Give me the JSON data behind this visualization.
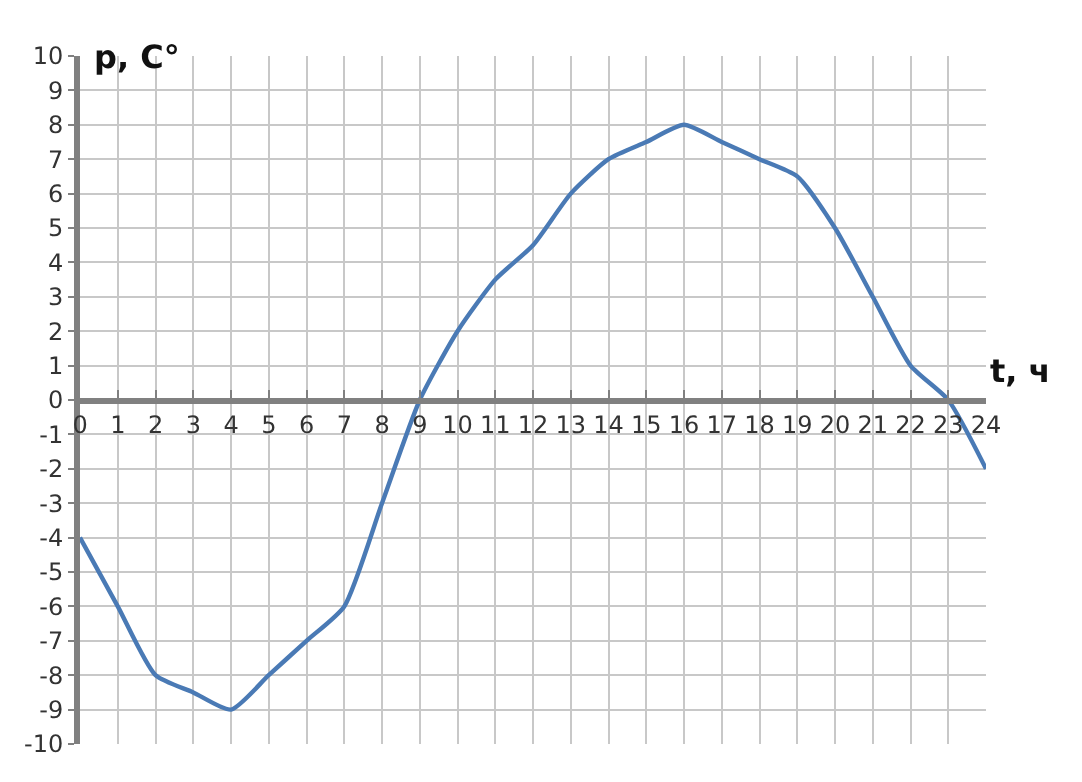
{
  "chart_data": {
    "type": "line",
    "xlabel": "t, ч",
    "ylabel": "p, C°",
    "x": [
      0,
      1,
      2,
      3,
      4,
      5,
      6,
      7,
      8,
      9,
      10,
      11,
      12,
      13,
      14,
      15,
      16,
      17,
      18,
      19,
      20,
      21,
      22,
      23,
      24
    ],
    "series": [
      {
        "color": "#4a7ab5",
        "values": [
          -4,
          -6,
          -8,
          -8.5,
          -9,
          -8,
          -7,
          -6,
          -3,
          0,
          2,
          3.5,
          4.5,
          6,
          7,
          7.5,
          8,
          7.5,
          7,
          6.5,
          5,
          3,
          1,
          0,
          -2
        ]
      }
    ],
    "xlim": [
      0,
      24
    ],
    "ylim": [
      -10,
      10
    ],
    "xticks": [
      0,
      1,
      2,
      3,
      4,
      5,
      6,
      7,
      8,
      9,
      10,
      11,
      12,
      13,
      14,
      15,
      16,
      17,
      18,
      19,
      20,
      21,
      22,
      23,
      24
    ],
    "yticks": [
      -10,
      -9,
      -8,
      -7,
      -6,
      -5,
      -4,
      -3,
      -2,
      -1,
      0,
      1,
      2,
      3,
      4,
      5,
      6,
      7,
      8,
      9,
      10
    ],
    "grid": true,
    "legend": false,
    "marker": "none",
    "line_style": "solid"
  }
}
